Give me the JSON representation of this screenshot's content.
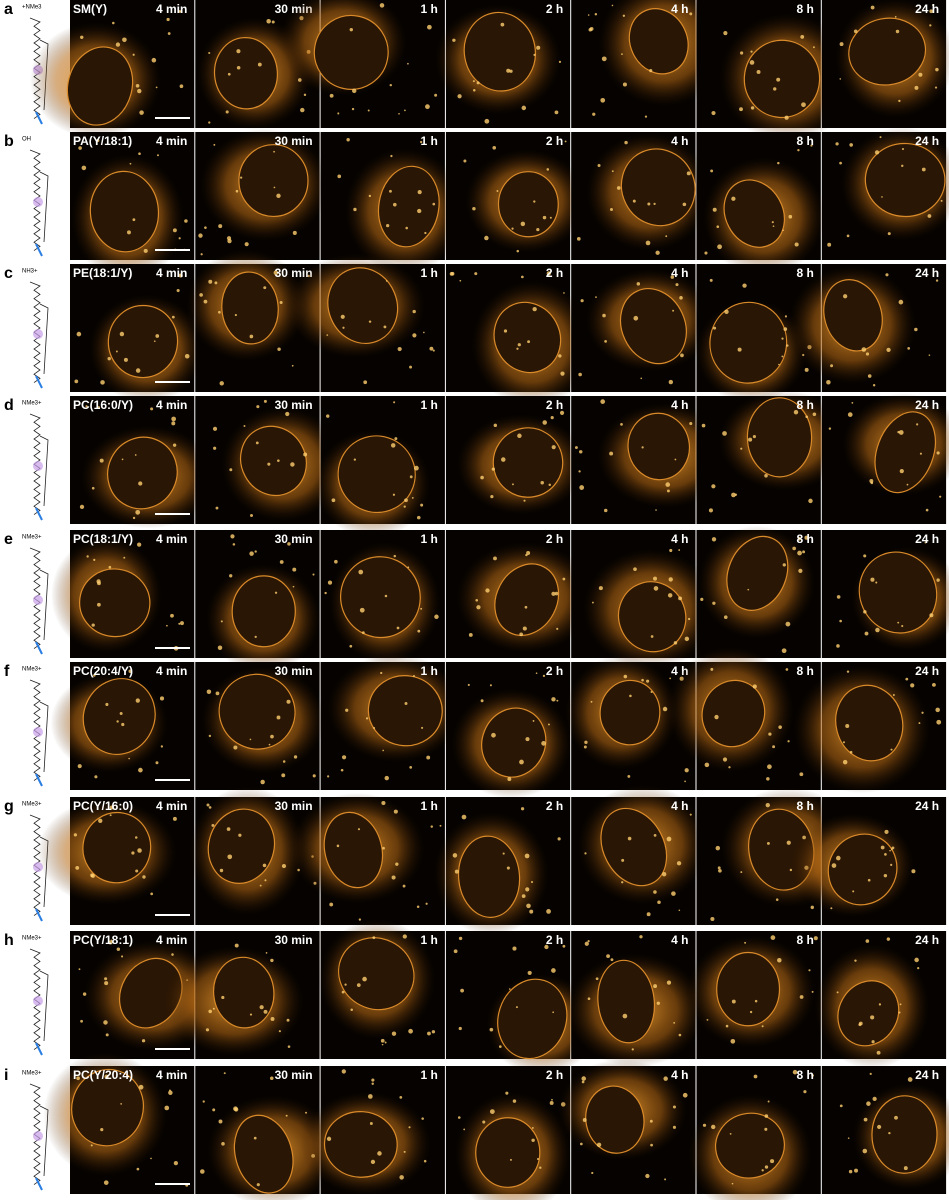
{
  "time_points": [
    "4 min",
    "30 min",
    "1 h",
    "2 h",
    "4 h",
    "8 h",
    "24 h"
  ],
  "rows": [
    {
      "letter": "a",
      "compound": "SM(Y)",
      "head_label": "+NMe3"
    },
    {
      "letter": "b",
      "compound": "PA(Y/18:1)",
      "head_label": "OH"
    },
    {
      "letter": "c",
      "compound": "PE(18:1/Y)",
      "head_label": "NH3+"
    },
    {
      "letter": "d",
      "compound": "PC(16:0/Y)",
      "head_label": "NMe3+"
    },
    {
      "letter": "e",
      "compound": "PC(18:1/Y)",
      "head_label": "NMe3+"
    },
    {
      "letter": "f",
      "compound": "PC(20:4/Y)",
      "head_label": "NMe3+"
    },
    {
      "letter": "g",
      "compound": "PC(Y/16:0)",
      "head_label": "NMe3+"
    },
    {
      "letter": "h",
      "compound": "PC(Y/18:1)",
      "head_label": "NMe3+"
    },
    {
      "letter": "i",
      "compound": "PC(Y/20:4)",
      "head_label": "NMe3+"
    }
  ]
}
